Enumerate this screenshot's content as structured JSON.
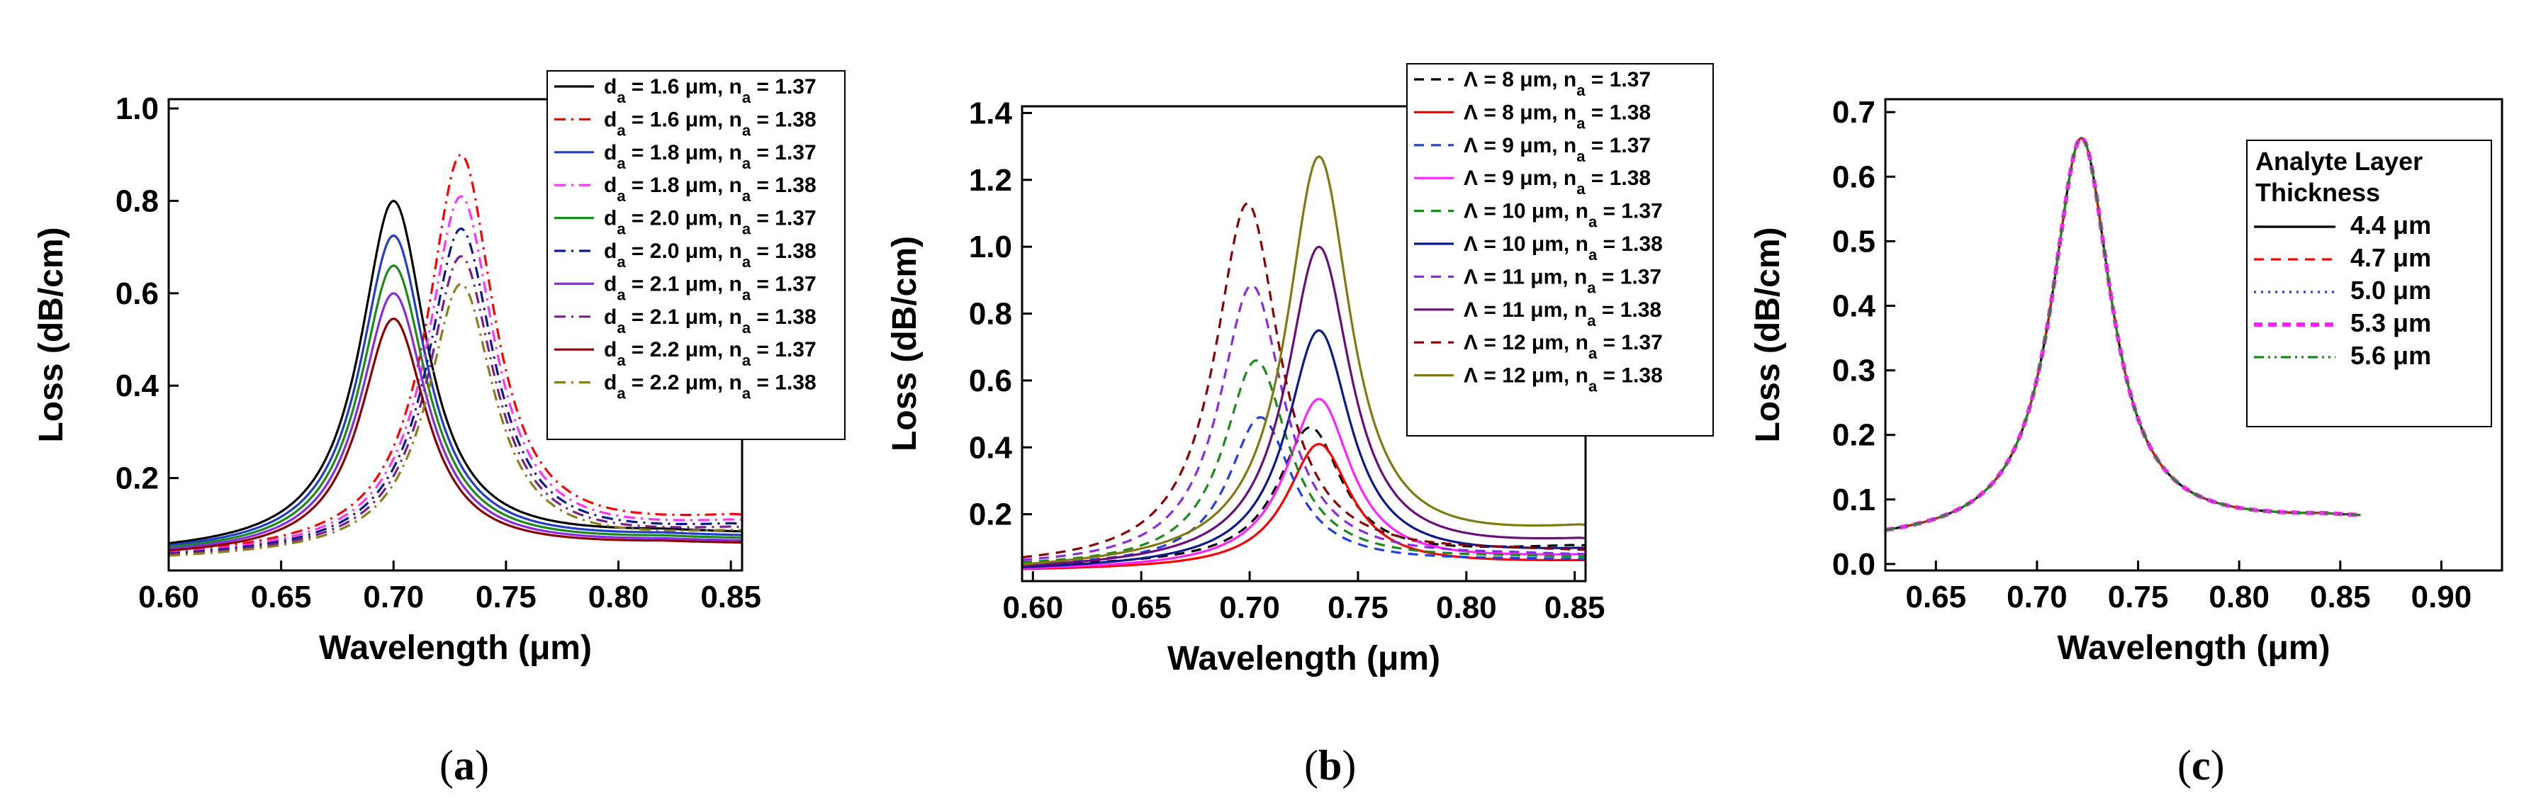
{
  "chart_data": [
    {
      "type": "line",
      "panel_label": {
        "open": "(",
        "letter": "a",
        "close": ")"
      },
      "xlabel": "Wavelength (μm)",
      "ylabel": "Loss (dB/cm)",
      "xlim": [
        0.6,
        0.855
      ],
      "ylim": [
        0.0,
        1.02
      ],
      "x_ticks": [
        "0.60",
        "0.65",
        "0.70",
        "0.75",
        "0.80",
        "0.85"
      ],
      "x_tick_values": [
        0.6,
        0.65,
        0.7,
        0.75,
        0.8,
        0.85
      ],
      "y_ticks": [
        "0.2",
        "0.4",
        "0.6",
        "0.8",
        "1.0"
      ],
      "y_tick_values": [
        0.2,
        0.4,
        0.6,
        0.8,
        1.0
      ],
      "legend_position": "top-right",
      "series": [
        {
          "name": "da = 1.6 μm, na = 1.37",
          "legend": [
            "d",
            "a",
            " = 1.6 μm, n",
            "a",
            " = 1.37"
          ],
          "color": "#000000",
          "dash": "solid",
          "peak_x": 0.7,
          "peak_y": 0.8,
          "base_left": 0.035,
          "base_right": 0.075
        },
        {
          "name": "da = 1.6 μm, na = 1.38",
          "legend": [
            "d",
            "a",
            " = 1.6 μm, n",
            "a",
            " = 1.38"
          ],
          "color": "#ff0000",
          "dash": "dashdot",
          "peak_x": 0.73,
          "peak_y": 0.9,
          "base_left": 0.025,
          "base_right": 0.105
        },
        {
          "name": "da = 1.8 μm, na = 1.37",
          "legend": [
            "d",
            "a",
            " = 1.8 μm, n",
            "a",
            " = 1.37"
          ],
          "color": "#1f3fc8",
          "dash": "solid",
          "peak_x": 0.7,
          "peak_y": 0.725,
          "base_left": 0.033,
          "base_right": 0.068
        },
        {
          "name": "da = 1.8 μm, na = 1.38",
          "legend": [
            "d",
            "a",
            " = 1.8 μm, n",
            "a",
            " = 1.38"
          ],
          "color": "#ff33ff",
          "dash": "dashdot",
          "peak_x": 0.73,
          "peak_y": 0.81,
          "base_left": 0.024,
          "base_right": 0.095
        },
        {
          "name": "da = 2.0 μm, na = 1.37",
          "legend": [
            "d",
            "a",
            " = 2.0 μm, n",
            "a",
            " = 1.37"
          ],
          "color": "#1a8a1a",
          "dash": "solid",
          "peak_x": 0.7,
          "peak_y": 0.66,
          "base_left": 0.031,
          "base_right": 0.063
        },
        {
          "name": "da = 2.0 μm, na = 1.38",
          "legend": [
            "d",
            "a",
            " = 2.0 μm, n",
            "a",
            " = 1.38"
          ],
          "color": "#0b1a8a",
          "dash": "dashdot",
          "peak_x": 0.73,
          "peak_y": 0.74,
          "base_left": 0.023,
          "base_right": 0.088
        },
        {
          "name": "da = 2.1 μm, na = 1.37",
          "legend": [
            "d",
            "a",
            " = 2.1 μm, n",
            "a",
            " = 1.37"
          ],
          "color": "#8a2be2",
          "dash": "solid",
          "peak_x": 0.7,
          "peak_y": 0.6,
          "base_left": 0.029,
          "base_right": 0.058
        },
        {
          "name": "da = 2.1 μm, na = 1.38",
          "legend": [
            "d",
            "a",
            " = 2.1 μm, n",
            "a",
            " = 1.38"
          ],
          "color": "#7a1f8a",
          "dash": "dashdot",
          "peak_x": 0.73,
          "peak_y": 0.68,
          "base_left": 0.022,
          "base_right": 0.082
        },
        {
          "name": "da = 2.2 μm, na = 1.37",
          "legend": [
            "d",
            "a",
            " = 2.2 μm, n",
            "a",
            " = 1.37"
          ],
          "color": "#8b0000",
          "dash": "solid",
          "peak_x": 0.7,
          "peak_y": 0.545,
          "base_left": 0.027,
          "base_right": 0.054
        },
        {
          "name": "da = 2.2 μm, na = 1.38",
          "legend": [
            "d",
            "a",
            " = 2.2 μm, n",
            "a",
            " = 1.38"
          ],
          "color": "#8b7d1a",
          "dash": "dashdot",
          "peak_x": 0.73,
          "peak_y": 0.62,
          "base_left": 0.021,
          "base_right": 0.076
        }
      ]
    },
    {
      "type": "line",
      "panel_label": {
        "open": "(",
        "letter": "b",
        "close": ")"
      },
      "xlabel": "Wavelength (μm)",
      "ylabel": "Loss (dB/cm)",
      "xlim": [
        0.595,
        0.855
      ],
      "ylim": [
        0.0,
        1.42
      ],
      "x_ticks": [
        "0.60",
        "0.65",
        "0.70",
        "0.75",
        "0.80",
        "0.85"
      ],
      "x_tick_values": [
        0.6,
        0.65,
        0.7,
        0.75,
        0.8,
        0.85
      ],
      "y_ticks": [
        "0.2",
        "0.4",
        "0.6",
        "0.8",
        "1.0",
        "1.2",
        "1.4"
      ],
      "y_tick_values": [
        0.2,
        0.4,
        0.6,
        0.8,
        1.0,
        1.2,
        1.4
      ],
      "legend_position": "top-right",
      "series": [
        {
          "name": "Λ = 8 μm, na = 1.37",
          "legend": [
            "Λ = 8 μm, n",
            "a",
            " = 1.37"
          ],
          "color": "#000000",
          "dash": "dash",
          "peak_x": 0.728,
          "peak_y": 0.46,
          "base_left": 0.04,
          "base_right": 0.1
        },
        {
          "name": "Λ = 8 μm, na = 1.38",
          "legend": [
            "Λ = 8 μm, n",
            "a",
            " = 1.38"
          ],
          "color": "#ff0000",
          "dash": "solid",
          "peak_x": 0.732,
          "peak_y": 0.41,
          "base_left": 0.03,
          "base_right": 0.055
        },
        {
          "name": "Λ = 9 μm, na = 1.37",
          "legend": [
            "Λ = 9 μm, n",
            "a",
            " = 1.37"
          ],
          "color": "#1f3fe0",
          "dash": "dash",
          "peak_x": 0.705,
          "peak_y": 0.49,
          "base_left": 0.04,
          "base_right": 0.06
        },
        {
          "name": "Λ = 9 μm, na = 1.38",
          "legend": [
            "Λ = 9 μm, n",
            "a",
            " = 1.38"
          ],
          "color": "#ff22ff",
          "dash": "solid",
          "peak_x": 0.732,
          "peak_y": 0.545,
          "base_left": 0.03,
          "base_right": 0.07
        },
        {
          "name": "Λ = 10 μm, na = 1.37",
          "legend": [
            "Λ = 10 μm, n",
            "a",
            " = 1.37"
          ],
          "color": "#1a8a1a",
          "dash": "dash",
          "peak_x": 0.703,
          "peak_y": 0.66,
          "base_left": 0.04,
          "base_right": 0.065
        },
        {
          "name": "Λ = 10 μm, na = 1.38",
          "legend": [
            "Λ = 10 μm, n",
            "a",
            " = 1.38"
          ],
          "color": "#0b1a8a",
          "dash": "solid",
          "peak_x": 0.732,
          "peak_y": 0.75,
          "base_left": 0.03,
          "base_right": 0.085
        },
        {
          "name": "Λ = 11 μm, na = 1.37",
          "legend": [
            "Λ = 11 μm, n",
            "a",
            " = 1.37"
          ],
          "color": "#8a2be2",
          "dash": "dash",
          "peak_x": 0.701,
          "peak_y": 0.885,
          "base_left": 0.04,
          "base_right": 0.07
        },
        {
          "name": "Λ = 11 μm, na = 1.38",
          "legend": [
            "Λ = 11 μm, n",
            "a",
            " = 1.38"
          ],
          "color": "#6a0f7a",
          "dash": "solid",
          "peak_x": 0.732,
          "peak_y": 1.0,
          "base_left": 0.03,
          "base_right": 0.11
        },
        {
          "name": "Λ = 12 μm, na = 1.37",
          "legend": [
            "Λ = 12 μm, n",
            "a",
            " = 1.37"
          ],
          "color": "#8b0000",
          "dash": "dash",
          "peak_x": 0.699,
          "peak_y": 1.13,
          "base_left": 0.04,
          "base_right": 0.08
        },
        {
          "name": "Λ = 12 μm, na = 1.38",
          "legend": [
            "Λ = 12 μm, n",
            "a",
            " = 1.38"
          ],
          "color": "#7f7a10",
          "dash": "solid",
          "peak_x": 0.732,
          "peak_y": 1.27,
          "base_left": 0.03,
          "base_right": 0.145
        }
      ]
    },
    {
      "type": "line",
      "panel_label": {
        "open": "(",
        "letter": "c",
        "close": ")"
      },
      "xlabel": "Wavelength (μm)",
      "ylabel": "Loss (dB/cm)",
      "xlim": [
        0.625,
        0.93
      ],
      "ylim": [
        -0.01,
        0.72
      ],
      "x_ticks": [
        "0.65",
        "0.70",
        "0.75",
        "0.80",
        "0.85",
        "0.90"
      ],
      "x_tick_values": [
        0.65,
        0.7,
        0.75,
        0.8,
        0.85,
        0.9
      ],
      "y_ticks": [
        "0.0",
        "0.1",
        "0.2",
        "0.3",
        "0.4",
        "0.5",
        "0.6",
        "0.7"
      ],
      "y_tick_values": [
        0.0,
        0.1,
        0.2,
        0.3,
        0.4,
        0.5,
        0.6,
        0.7
      ],
      "legend_position": "top-right",
      "legend_title": [
        "Analyte Layer",
        "Thickness"
      ],
      "series": [
        {
          "name": "4.4 μm",
          "color": "#000000",
          "dash": "solid",
          "peak_x": 0.722,
          "peak_y": 0.66,
          "base_left": 0.03,
          "base_right": 0.066,
          "x_start": 0.625,
          "x_end": 0.86
        },
        {
          "name": "4.7 μm",
          "color": "#ff0000",
          "dash": "dash",
          "peak_x": 0.722,
          "peak_y": 0.66,
          "base_left": 0.03,
          "base_right": 0.066,
          "x_start": 0.625,
          "x_end": 0.86
        },
        {
          "name": "5.0 μm",
          "color": "#1f3fe0",
          "dash": "dot",
          "peak_x": 0.722,
          "peak_y": 0.66,
          "base_left": 0.03,
          "base_right": 0.066,
          "x_start": 0.625,
          "x_end": 0.86
        },
        {
          "name": "5.3 μm",
          "color": "#ff22ff",
          "dash": "dashthick",
          "peak_x": 0.722,
          "peak_y": 0.66,
          "base_left": 0.03,
          "base_right": 0.066,
          "x_start": 0.625,
          "x_end": 0.86
        },
        {
          "name": "5.6 μm",
          "color": "#1a8a1a",
          "dash": "dashdotdot",
          "peak_x": 0.722,
          "peak_y": 0.66,
          "base_left": 0.03,
          "base_right": 0.066,
          "x_start": 0.625,
          "x_end": 0.86
        }
      ]
    }
  ]
}
